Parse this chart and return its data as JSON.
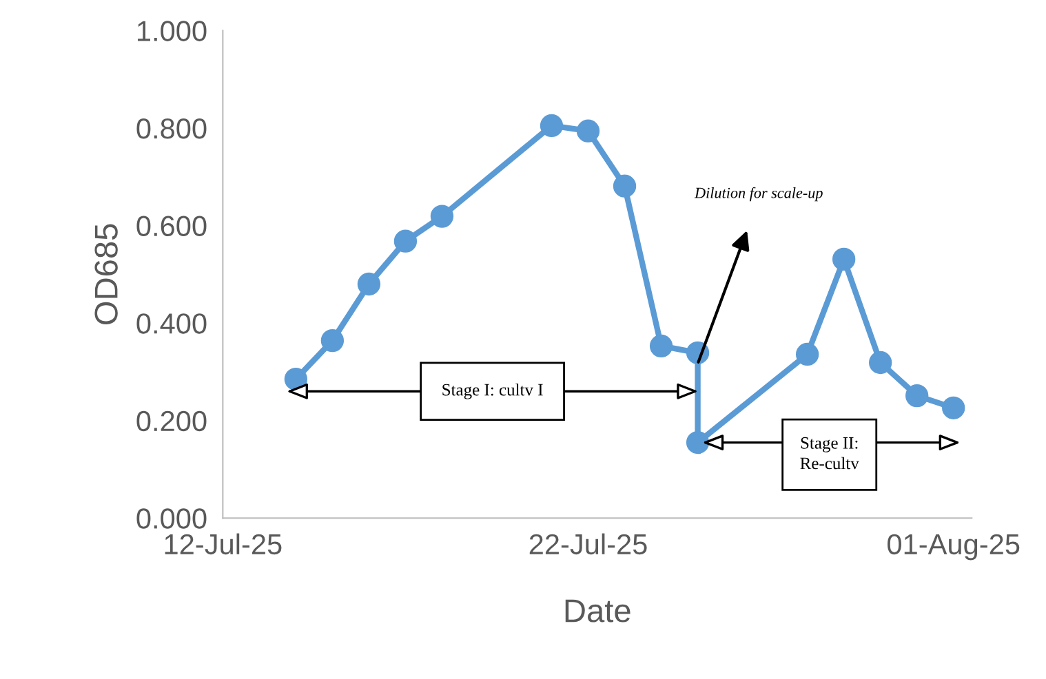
{
  "chart_data": {
    "type": "line",
    "xlabel": "Date",
    "ylabel": "OD685",
    "x": [
      "2025-07-14",
      "2025-07-15",
      "2025-07-16",
      "2025-07-17",
      "2025-07-18",
      "2025-07-21",
      "2025-07-22",
      "2025-07-23",
      "2025-07-24",
      "2025-07-25",
      "2025-07-25",
      "2025-07-28",
      "2025-07-29",
      "2025-07-30",
      "2025-07-31",
      "2025-08-01"
    ],
    "series": [
      {
        "color": "#5b9bd5",
        "values": [
          0.285,
          0.364,
          0.48,
          0.568,
          0.619,
          0.805,
          0.794,
          0.681,
          0.353,
          0.339,
          0.155,
          0.336,
          0.531,
          0.319,
          0.251,
          0.226
        ]
      }
    ],
    "xlim": [
      "2025-07-12",
      "2025-08-01T12:00"
    ],
    "xticks": [
      {
        "value": "2025-07-12",
        "label": "12-Jul-25"
      },
      {
        "value": "2025-07-22",
        "label": "22-Jul-25"
      },
      {
        "value": "2025-08-01",
        "label": "01-Aug-25"
      }
    ],
    "ylim": [
      0,
      1
    ],
    "yticks": [
      {
        "value": 0,
        "label": "0.000"
      },
      {
        "value": 0.2,
        "label": "0.200"
      },
      {
        "value": 0.4,
        "label": "0.400"
      },
      {
        "value": 0.6,
        "label": "0.600"
      },
      {
        "value": 0.8,
        "label": "0.800"
      },
      {
        "value": 1,
        "label": "1.000"
      }
    ],
    "marker": "circle",
    "line_style": "solid",
    "grid": false,
    "legend": false,
    "annotations": [
      "Dilution for scale-up",
      "Stage I: cultv I",
      "Stage II:\nRe-cultv"
    ]
  }
}
